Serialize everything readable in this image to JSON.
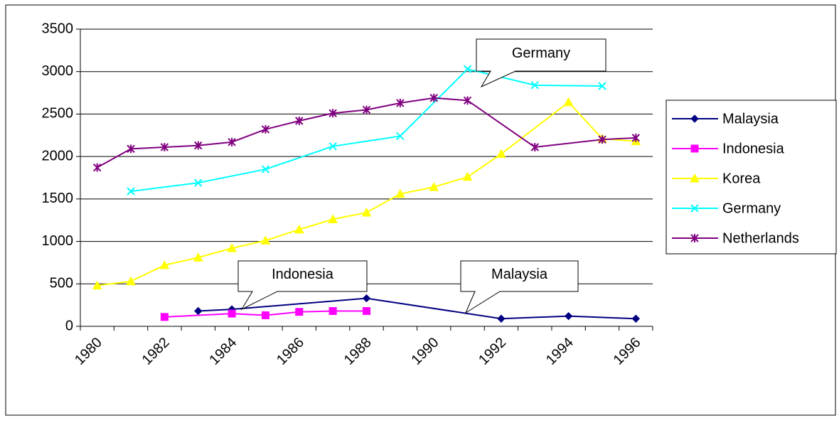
{
  "chart_data": {
    "type": "line",
    "categories": [
      "1980",
      null,
      "1982",
      null,
      "1984",
      null,
      "1986",
      null,
      "1988",
      null,
      "1990",
      null,
      "1992",
      null,
      "1994",
      null,
      "1996"
    ],
    "series": [
      {
        "name": "Malaysia",
        "color": "#000080",
        "marker": "diamond",
        "values": [
          null,
          null,
          null,
          180,
          200,
          null,
          null,
          null,
          330,
          null,
          null,
          null,
          90,
          null,
          120,
          null,
          90
        ]
      },
      {
        "name": "Indonesia",
        "color": "#ff00ff",
        "marker": "square",
        "values": [
          null,
          null,
          110,
          null,
          150,
          130,
          170,
          180,
          180,
          null,
          null,
          null,
          null,
          null,
          null,
          null,
          null
        ]
      },
      {
        "name": "Korea",
        "color": "#ffff00",
        "marker": "triangle",
        "values": [
          480,
          530,
          720,
          810,
          920,
          1010,
          1140,
          1260,
          1340,
          1560,
          1640,
          1760,
          2030,
          null,
          2640,
          2210,
          2180
        ]
      },
      {
        "name": "Germany",
        "color": "#00ffff",
        "marker": "x",
        "values": [
          null,
          1590,
          null,
          1690,
          null,
          1850,
          null,
          2120,
          null,
          2240,
          null,
          3030,
          null,
          2840,
          null,
          2830,
          null
        ]
      },
      {
        "name": "Netherlands",
        "color": "#800080",
        "marker": "star",
        "values": [
          1870,
          2090,
          2110,
          2130,
          2170,
          2320,
          2420,
          2510,
          2550,
          2630,
          2690,
          2660,
          null,
          2110,
          null,
          2200,
          2220
        ]
      }
    ],
    "connect_gaps": true,
    "ylim": [
      0,
      3500
    ],
    "yticks": [
      0,
      500,
      1000,
      1500,
      2000,
      2500,
      3000,
      3500
    ],
    "grid": true,
    "legend": "right",
    "annotations": [
      "Germany",
      "Indonesia",
      "Malaysia"
    ]
  }
}
